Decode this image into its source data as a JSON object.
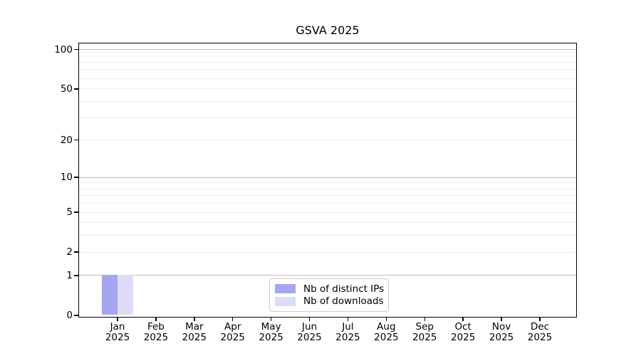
{
  "chart_data": {
    "type": "bar",
    "title": "GSVA 2025",
    "x": [
      "Jan",
      "Feb",
      "Mar",
      "Apr",
      "May",
      "Jun",
      "Jul",
      "Aug",
      "Sep",
      "Oct",
      "Nov",
      "Dec"
    ],
    "xtick_year": "2025",
    "series": [
      {
        "name": "Nb of distinct IPs",
        "color": "#a5a5f0",
        "values": [
          1,
          0,
          0,
          0,
          0,
          0,
          0,
          0,
          0,
          0,
          0,
          0
        ]
      },
      {
        "name": "Nb of downloads",
        "color": "#dcdcf8",
        "values": [
          1,
          0,
          0,
          0,
          0,
          0,
          0,
          0,
          0,
          0,
          0,
          0
        ]
      }
    ],
    "yscale": "symlog (log1p)",
    "ylim": [
      0,
      113
    ],
    "ytick_values": [
      0,
      1,
      2,
      5,
      10,
      20,
      50,
      100
    ],
    "ytick_labels": [
      "0",
      "1",
      "2",
      "5",
      "10",
      "20",
      "50",
      "100"
    ],
    "major_gridlines": [
      1,
      10,
      100
    ],
    "minor_gridlines": [
      2,
      3,
      4,
      5,
      6,
      7,
      8,
      9,
      20,
      30,
      40,
      50,
      60,
      70,
      80,
      90
    ],
    "grid": true,
    "legend_position": "lower center",
    "colors": {
      "grid_major": "#bdbdbd",
      "grid_minor": "#ededed",
      "axis": "#000000",
      "text": "#000000",
      "bar_distinct_ips": "#a5a5f0",
      "bar_downloads": "#dcdcf8"
    }
  }
}
